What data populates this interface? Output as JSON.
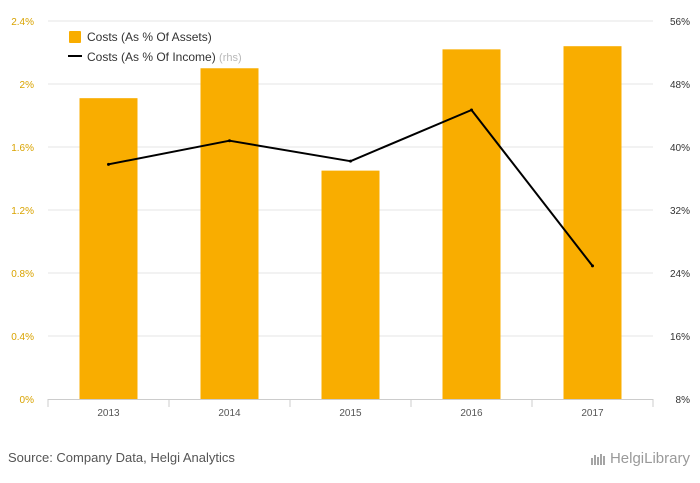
{
  "chart_data": {
    "type": "bar",
    "categories": [
      "2013",
      "2014",
      "2015",
      "2016",
      "2017"
    ],
    "series": [
      {
        "name": "Costs (As % Of Assets)",
        "type": "bar",
        "axis": "left",
        "color": "#f9ad00",
        "values": [
          1.91,
          2.1,
          1.45,
          2.22,
          2.24
        ]
      },
      {
        "name": "Costs (As % Of Income)",
        "legend_suffix": "(rhs)",
        "type": "line",
        "axis": "right",
        "color": "#000000",
        "values": [
          37.8,
          40.8,
          38.2,
          44.7,
          24.9
        ]
      }
    ],
    "left_axis": {
      "ylim": [
        0,
        2.4
      ],
      "ticks": [
        "0%",
        "0.4%",
        "0.8%",
        "1.2%",
        "1.6%",
        "2%",
        "2.4%"
      ]
    },
    "right_axis": {
      "ylim": [
        8,
        56
      ],
      "ticks": [
        "8%",
        "16%",
        "24%",
        "32%",
        "40%",
        "48%",
        "56%"
      ]
    },
    "grid": true,
    "legend_position": "top-left"
  },
  "footer": {
    "source": "Source: Company Data, Helgi Analytics",
    "brand": "HelgiLibrary"
  }
}
